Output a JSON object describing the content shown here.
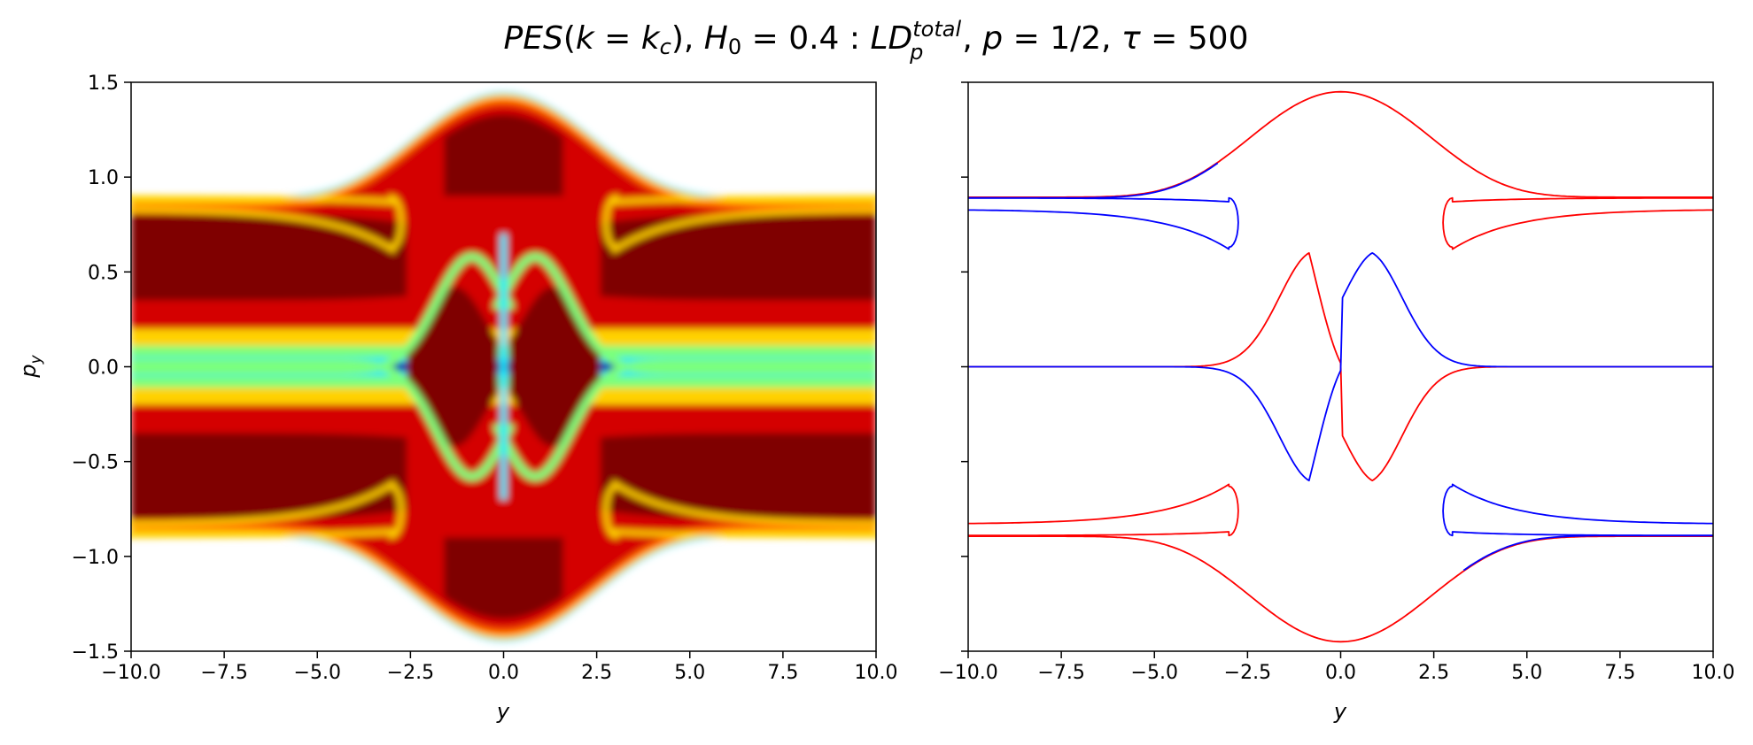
{
  "chart_data": {
    "title": {
      "t1": "PES",
      "t2": "(",
      "t3": "k",
      "t4": " = ",
      "t5": "k",
      "t6": "c",
      "t7": "), ",
      "t8": "H",
      "t9": "0",
      "t10": " = 0.4 : ",
      "t11": "LD",
      "t12": "total",
      "t13": "p",
      "t14": ", ",
      "t15": "p",
      "t16": " = 1/2, ",
      "t17": "τ",
      "t18": " = 500"
    },
    "panels": [
      {
        "type": "heatmap",
        "colormap": "jet",
        "xlabel": "y",
        "ylabel": "p",
        "ylabel_sub": "y",
        "xlim": [
          -10,
          10
        ],
        "ylim": [
          -1.5,
          1.5
        ],
        "xticks": [
          "−10.0",
          "−7.5",
          "−5.0",
          "−2.5",
          "0.0",
          "2.5",
          "5.0",
          "7.5",
          "10.0"
        ],
        "yticks": [
          "−1.5",
          "−1.0",
          "−0.5",
          "0.0",
          "0.5",
          "1.0",
          "1.5"
        ],
        "energy_boundary": {
          "flat_py": 0.894,
          "peak_py": 1.45
        }
      },
      {
        "type": "line",
        "xlabel": "y",
        "xlim": [
          -10,
          10
        ],
        "ylim": [
          -1.5,
          1.5
        ],
        "xticks": [
          "−10.0",
          "−7.5",
          "−5.0",
          "−2.5",
          "0.0",
          "2.5",
          "5.0",
          "7.5",
          "10.0"
        ],
        "series": [
          {
            "color": "#ff0000"
          },
          {
            "color": "#0000ff"
          }
        ]
      }
    ]
  }
}
